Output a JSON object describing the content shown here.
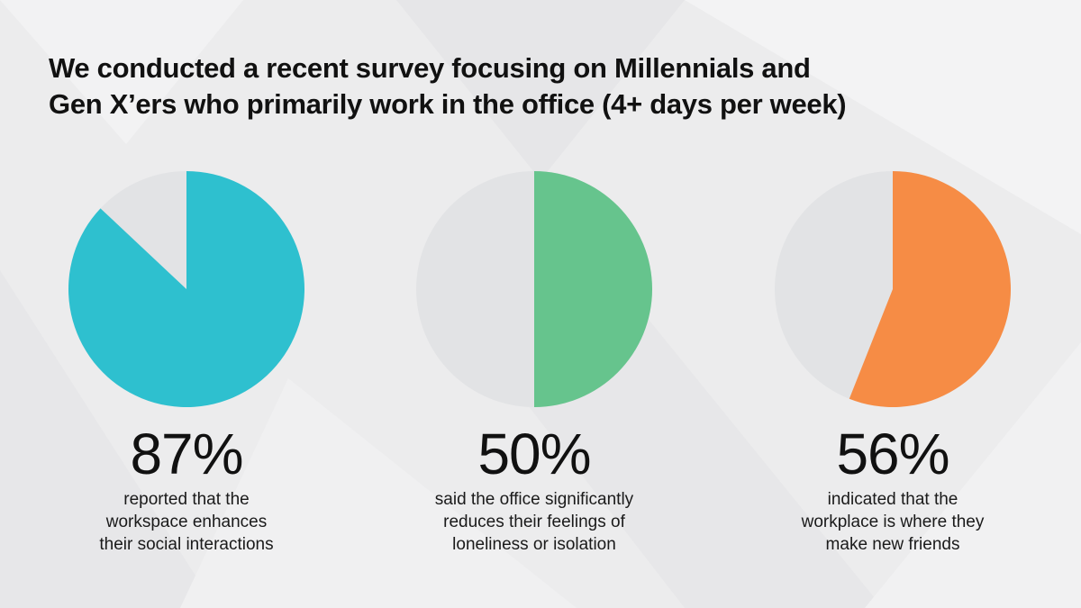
{
  "colors": {
    "background": "#ececed",
    "pie_remainder": "#e2e3e5",
    "text": "#111111"
  },
  "title_lines": [
    "We conducted a recent survey focusing on Millennials and",
    "Gen X’ers who primarily work in the office (4+ days per week)"
  ],
  "chart_data": [
    {
      "type": "pie",
      "value": 87,
      "label": "87%",
      "description_lines": [
        "reported that the",
        "workspace enhances",
        "their social interactions"
      ],
      "color": "#2ec0cf",
      "remainder_color": "#e2e3e5"
    },
    {
      "type": "pie",
      "value": 50,
      "label": "50%",
      "description_lines": [
        "said the office significantly",
        "reduces their feelings of",
        "loneliness or isolation"
      ],
      "color": "#66c48d",
      "remainder_color": "#e2e3e5"
    },
    {
      "type": "pie",
      "value": 56,
      "label": "56%",
      "description_lines": [
        "indicated that the",
        "workplace is where they",
        "make new friends"
      ],
      "color": "#f68c45",
      "remainder_color": "#e2e3e5"
    }
  ]
}
